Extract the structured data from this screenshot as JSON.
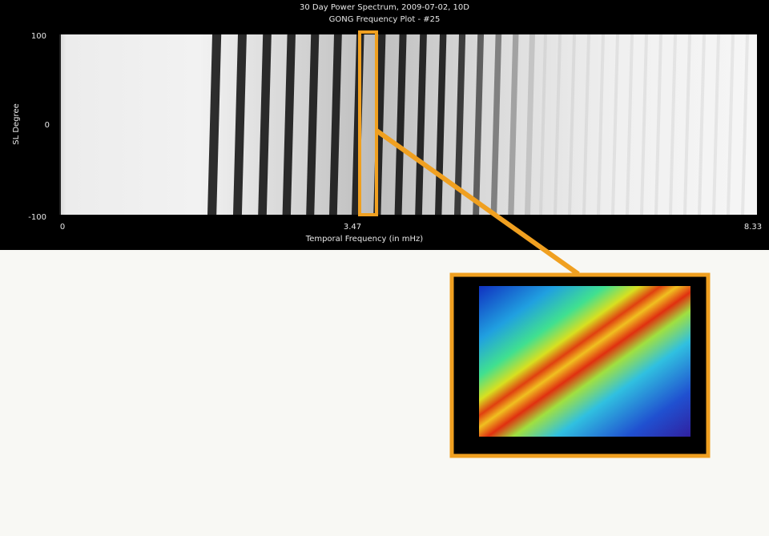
{
  "figure": {
    "title": "30 Day Power Spectrum, 2009-07-02, 10D",
    "subtitle": "GONG Frequency Plot - #25",
    "y_label": "SL Degree",
    "y_ticks": [
      "100",
      "0",
      "-100"
    ],
    "x_label": "Temporal Frequency (in mHz)",
    "x_ticks": [
      "0",
      "3.47",
      "8.33"
    ]
  }
}
